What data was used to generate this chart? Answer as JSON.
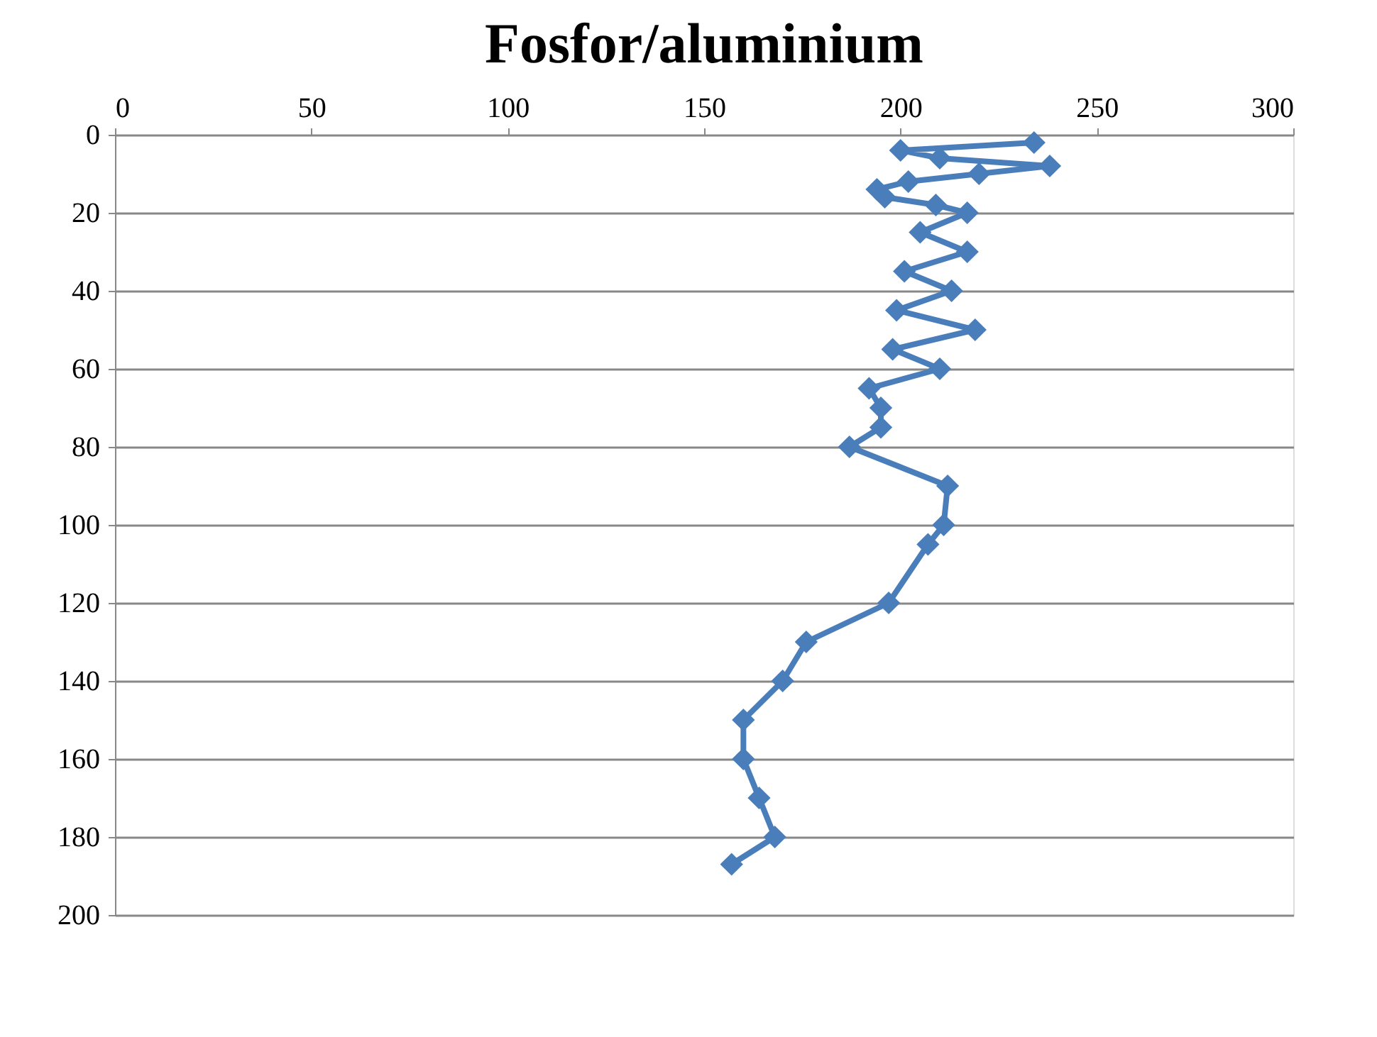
{
  "chart_data": {
    "type": "line",
    "title": "Fosfor/aluminium",
    "x": [
      234,
      200,
      210,
      238,
      220,
      202,
      194,
      196,
      209,
      217,
      205,
      217,
      201,
      213,
      199,
      219,
      198,
      210,
      192,
      195,
      195,
      187,
      212,
      211,
      207,
      197,
      176,
      170,
      160,
      160,
      164,
      168,
      157
    ],
    "values": [
      2,
      4,
      6,
      8,
      10,
      12,
      14,
      16,
      18,
      20,
      25,
      30,
      35,
      40,
      45,
      50,
      55,
      60,
      65,
      70,
      75,
      80,
      90,
      100,
      105,
      120,
      130,
      140,
      150,
      160,
      170,
      180,
      187
    ],
    "color": "#4a7ebb",
    "marker": "diamond",
    "line_style": "solid",
    "xlim": [
      0,
      300
    ],
    "xticks": [
      0,
      50,
      100,
      150,
      200,
      250,
      300
    ],
    "ylim": [
      200,
      0
    ],
    "yticks": [
      0,
      20,
      40,
      60,
      80,
      100,
      120,
      140,
      160,
      180,
      200
    ],
    "grid": "y"
  }
}
